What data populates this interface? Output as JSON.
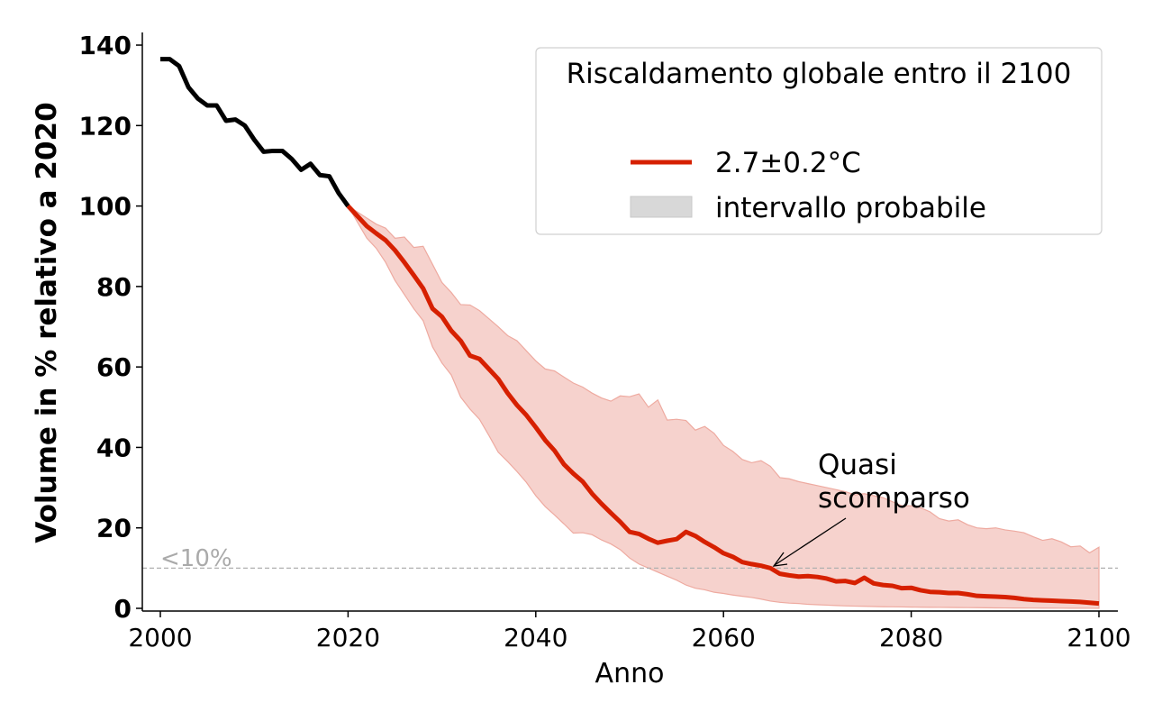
{
  "chart_data": {
    "type": "line",
    "xlabel": "Anno",
    "ylabel": "Volume in % relativo a 2020",
    "xlim": [
      1998,
      2102
    ],
    "ylim": [
      -0.7,
      143
    ],
    "xticks": [
      2000,
      2020,
      2040,
      2060,
      2080,
      2100
    ],
    "yticks": [
      0,
      20,
      40,
      60,
      80,
      100,
      120,
      140
    ],
    "grid": false,
    "legend": {
      "title": "Riscaldamento globale entro il 2100",
      "placement": "top-right",
      "entries": [
        "2.7±0.2°C",
        "intervallo probabile"
      ]
    },
    "threshold": {
      "value": 10,
      "label": "<10%",
      "color": "#aaaaaa"
    },
    "annotation": {
      "text_line1": "Quasi",
      "text_line2": "scomparso",
      "x": 2065,
      "y": 10,
      "text_x": 2070,
      "text_y": 25
    },
    "colors": {
      "historical": "#000000",
      "projection": "#d62000",
      "band": "#f6d2cd",
      "band_edge": "#eeaaa0",
      "legend_patch": "#d8d8d8"
    },
    "historical": {
      "x": [
        2000,
        2001,
        2002,
        2003,
        2004,
        2005,
        2006,
        2007,
        2008,
        2009,
        2010,
        2011,
        2012,
        2013,
        2014,
        2015,
        2016,
        2017,
        2018,
        2019,
        2020
      ],
      "y": [
        136.5,
        136.5,
        134.8,
        129.5,
        126.7,
        125,
        125,
        121.2,
        121.5,
        120,
        116.5,
        113.5,
        113.7,
        113.7,
        111.7,
        109,
        110.5,
        107.7,
        107.4,
        103.2,
        100
      ]
    },
    "series": [
      {
        "name": "2.7±0.2°C",
        "x_start": 2020,
        "values": [
          100,
          97.5,
          95,
          93.2,
          91.5,
          89,
          86,
          82.8,
          79.5,
          74.5,
          72.5,
          69,
          66.5,
          62.8,
          62,
          59.5,
          57,
          53.5,
          50.5,
          48,
          45,
          41.8,
          39.2,
          35.8,
          33.5,
          31.5,
          28.5,
          26,
          23.7,
          21.5,
          19,
          18.5,
          17.3,
          16.3,
          16.8,
          17.2,
          19,
          18,
          16.5,
          15.2,
          13.7,
          12.8,
          11.5,
          11,
          10.6,
          10,
          8.6,
          8.2,
          7.9,
          8,
          7.8,
          7.4,
          6.7,
          6.8,
          6.3,
          7.6,
          6.2,
          5.8,
          5.6,
          5,
          5.1,
          4.5,
          4.1,
          4,
          3.8,
          3.8,
          3.5,
          3.1,
          3,
          2.9,
          2.8,
          2.6,
          2.3,
          2.1,
          2,
          1.9,
          1.8,
          1.7,
          1.6,
          1.4,
          1.2
        ]
      }
    ],
    "band": {
      "name": "intervallo probabile",
      "x_start": 2020,
      "upper": [
        100,
        98.5,
        97,
        95.5,
        94.5,
        92,
        92.3,
        89.7,
        90,
        85.5,
        81,
        78.5,
        75.5,
        75.4,
        74,
        72,
        70,
        67.8,
        66.5,
        64,
        61.5,
        59.5,
        59,
        57.5,
        56,
        55,
        53.5,
        52.3,
        51.5,
        52.8,
        52.6,
        53.3,
        50,
        51.8,
        46.8,
        47,
        46.7,
        44.3,
        45.2,
        43.5,
        40.5,
        39,
        37,
        36.2,
        36.7,
        35.3,
        32.5,
        32.2,
        31.5,
        31,
        30.5,
        30,
        29.5,
        29,
        28.2,
        28.5,
        28,
        27.5,
        26.5,
        25.5,
        25.5,
        25,
        24,
        22.3,
        21.7,
        22,
        20.8,
        20,
        19.8,
        20,
        19.5,
        19.2,
        18.8,
        17.8,
        16.9,
        17.3,
        16.5,
        15.3,
        15.5,
        13.8,
        15.2
      ],
      "lower": [
        100,
        96,
        92,
        89.5,
        86,
        81.5,
        78,
        74.5,
        71.5,
        65,
        61,
        58,
        52.5,
        49.5,
        47,
        43,
        38.8,
        36.5,
        34,
        31.3,
        28,
        25.3,
        23.2,
        21,
        18.7,
        18.8,
        18.3,
        17,
        16,
        14.6,
        12.5,
        11,
        10,
        9,
        8,
        7,
        5.8,
        5,
        4.6,
        4,
        3.7,
        3.3,
        3,
        2.7,
        2.3,
        1.8,
        1.5,
        1.3,
        1.2,
        1,
        0.9,
        0.8,
        0.7,
        0.6,
        0.55,
        0.5,
        0.45,
        0.4,
        0.38,
        0.35,
        0.3,
        0.28,
        0.26,
        0.24,
        0.22,
        0.2,
        0.18,
        0.16,
        0.14,
        0.12,
        0.1,
        0.09,
        0.08,
        0.07,
        0.06,
        0.05,
        0.04,
        0.03,
        0.02,
        0.01,
        0
      ]
    }
  }
}
